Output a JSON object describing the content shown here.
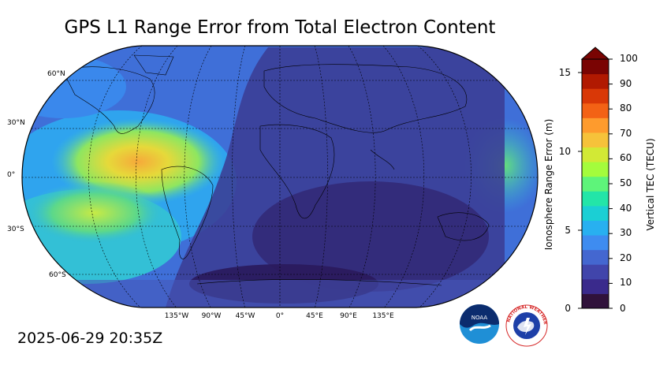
{
  "title": "GPS L1 Range Error from Total Electron Content",
  "timestamp": "2025-06-29 20:35Z",
  "lat_labels": [
    "60°N",
    "30°N",
    "0°",
    "30°S",
    "60°S"
  ],
  "lon_labels": [
    "135°W",
    "90°W",
    "45°W",
    "0°",
    "45°E",
    "90°E",
    "135°E"
  ],
  "colorbar": {
    "left_label": "Ionosphere Range Error (m)",
    "right_label": "Vertical TEC (TECU)",
    "left_ticks": [
      "15",
      "10",
      "5",
      "0"
    ],
    "right_ticks": [
      "100",
      "90",
      "80",
      "70",
      "60",
      "50",
      "40",
      "30",
      "20",
      "10",
      "0"
    ],
    "colors": [
      "#30123b",
      "#3a2a8c",
      "#4145ab",
      "#4467d0",
      "#3e8cf0",
      "#28b0f0",
      "#1bcfd4",
      "#23e5a8",
      "#5ef47a",
      "#a4fc3c",
      "#d2e935",
      "#f6c23a",
      "#fe9b2d",
      "#f36215",
      "#d93807",
      "#b11901",
      "#7a0403"
    ]
  },
  "logos": {
    "noaa": "NOAA",
    "nws": "NATIONAL WEATHER SERVICE"
  }
}
